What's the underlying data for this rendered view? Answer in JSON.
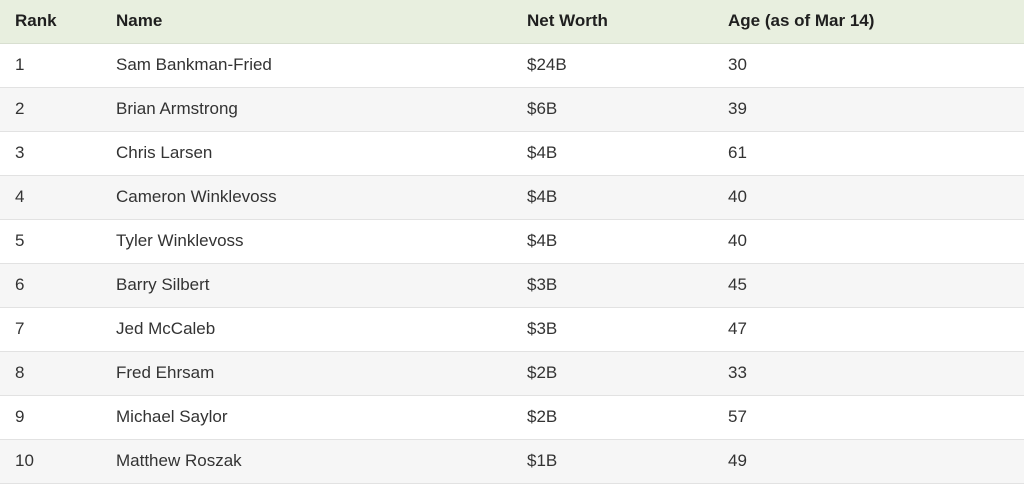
{
  "table": {
    "headers": {
      "rank": "Rank",
      "name": "Name",
      "net_worth": "Net Worth",
      "age": "Age (as of Mar 14)"
    },
    "rows": [
      {
        "rank": "1",
        "name": "Sam Bankman-Fried",
        "net_worth": "$24B",
        "age": "30"
      },
      {
        "rank": "2",
        "name": "Brian Armstrong",
        "net_worth": "$6B",
        "age": "39"
      },
      {
        "rank": "3",
        "name": "Chris Larsen",
        "net_worth": "$4B",
        "age": "61"
      },
      {
        "rank": "4",
        "name": "Cameron Winklevoss",
        "net_worth": "$4B",
        "age": "40"
      },
      {
        "rank": "5",
        "name": "Tyler Winklevoss",
        "net_worth": "$4B",
        "age": "40"
      },
      {
        "rank": "6",
        "name": "Barry Silbert",
        "net_worth": "$3B",
        "age": "45"
      },
      {
        "rank": "7",
        "name": "Jed McCaleb",
        "net_worth": "$3B",
        "age": "47"
      },
      {
        "rank": "8",
        "name": "Fred Ehrsam",
        "net_worth": "$2B",
        "age": "33"
      },
      {
        "rank": "9",
        "name": "Michael Saylor",
        "net_worth": "$2B",
        "age": "57"
      },
      {
        "rank": "10",
        "name": "Matthew Roszak",
        "net_worth": "$1B",
        "age": "49"
      }
    ]
  },
  "colors": {
    "header_background": "#e8efdf",
    "stripe_background": "#f6f6f6"
  }
}
